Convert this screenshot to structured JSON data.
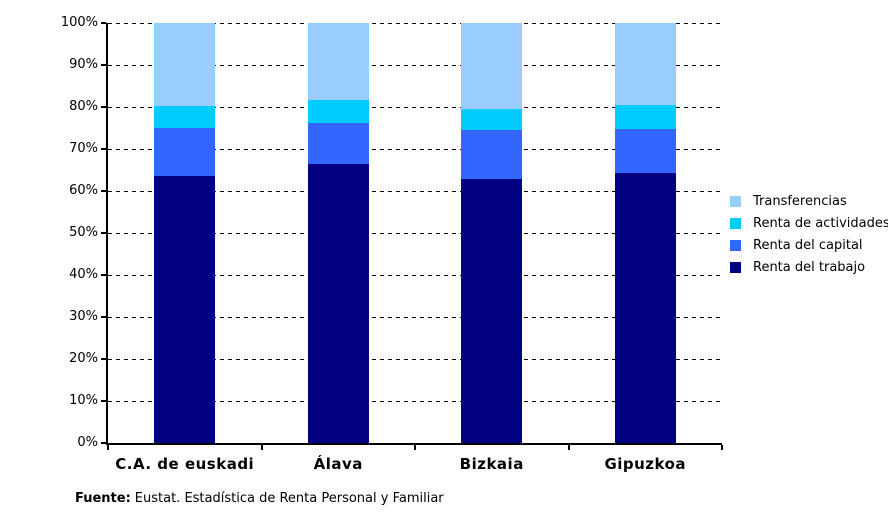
{
  "chart_data": {
    "type": "bar",
    "subtype": "stacked-100-percent-column",
    "categories": [
      "C.A. de euskadi",
      "Álava",
      "Bizkaia",
      "Gipuzkoa"
    ],
    "series": [
      {
        "name": "Renta del trabajo",
        "color": "#000080",
        "values": [
          63.6,
          66.4,
          62.8,
          64.2
        ]
      },
      {
        "name": "Renta del capital",
        "color": "#3366FF",
        "values": [
          11.3,
          9.9,
          11.7,
          10.5
        ]
      },
      {
        "name": "Renta de actividades",
        "color": "#00CCFF",
        "values": [
          5.3,
          5.4,
          5.0,
          5.8
        ]
      },
      {
        "name": "Transferencias",
        "color": "#99CCFF",
        "values": [
          19.8,
          18.3,
          20.5,
          19.5
        ]
      }
    ],
    "ylim": [
      0,
      100
    ],
    "y_ticks": [
      "0%",
      "10%",
      "20%",
      "30%",
      "40%",
      "50%",
      "60%",
      "70%",
      "80%",
      "90%",
      "100%"
    ],
    "grid": "horizontal-dashed-black",
    "legend_position": "right",
    "legend_order_top_to_bottom": [
      "Transferencias",
      "Renta de actividades",
      "Renta del capital",
      "Renta del trabajo"
    ]
  },
  "footer": {
    "prefix": "Fuente:",
    "text": "Eustat. Estadística de Renta Personal y Familiar"
  }
}
